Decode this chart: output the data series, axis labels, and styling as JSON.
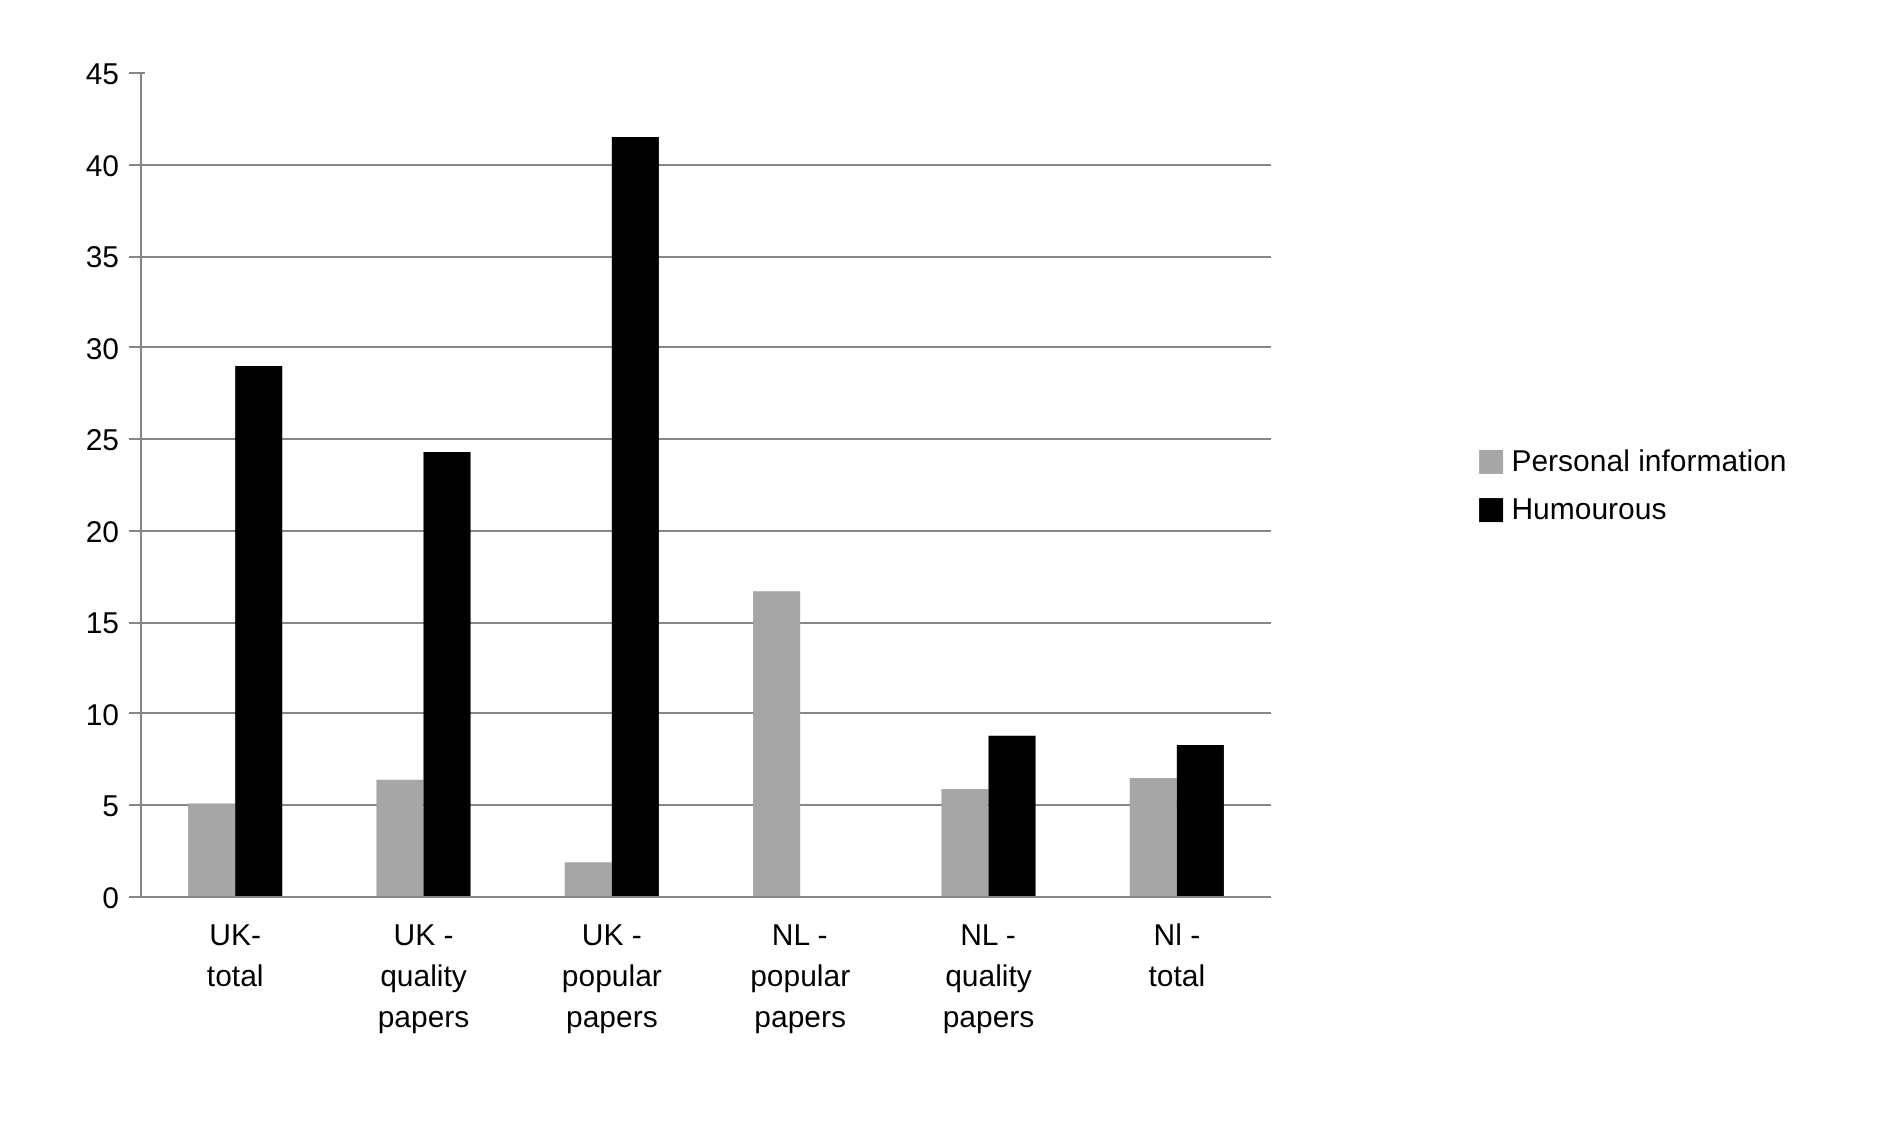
{
  "chart_data": {
    "type": "bar",
    "categories": [
      "UK- total",
      "UK - quality papers",
      "UK - popular papers",
      "NL - popular papers",
      "NL - quality papers",
      "Nl - total"
    ],
    "series": [
      {
        "name": "Personal information",
        "color": "#a6a6a6",
        "values": [
          5.1,
          6.4,
          1.9,
          16.7,
          5.9,
          6.5
        ]
      },
      {
        "name": "Humourous",
        "color": "#000000",
        "values": [
          29,
          24.3,
          41.5,
          0,
          8.8,
          8.3
        ]
      }
    ],
    "ylim": [
      0,
      45
    ],
    "yticks": [
      0,
      5,
      10,
      15,
      20,
      25,
      30,
      35,
      40,
      45
    ],
    "grid": "y",
    "legend": "right"
  }
}
